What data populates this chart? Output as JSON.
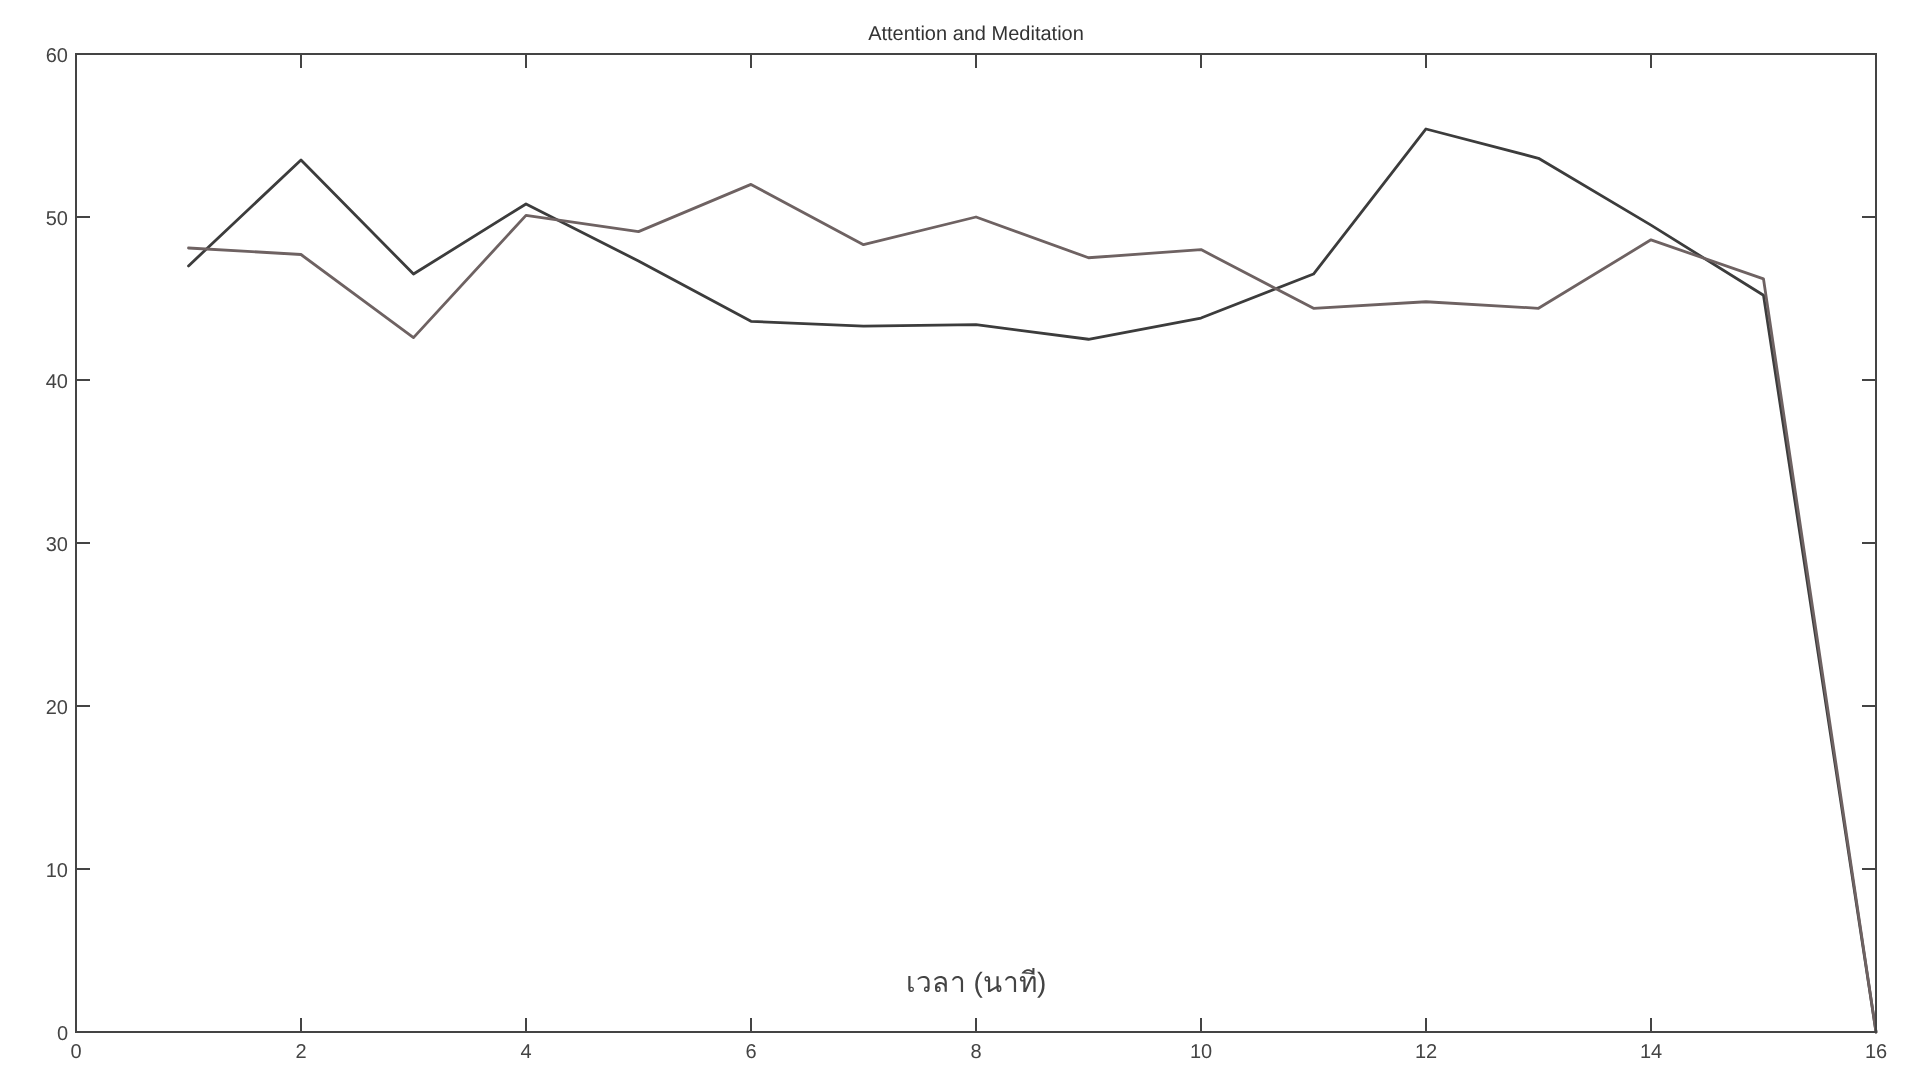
{
  "chart_data": {
    "type": "line",
    "title": "Attention and Meditation",
    "xlabel": "เวลา (นาที)",
    "x": [
      1,
      2,
      3,
      4,
      5,
      6,
      7,
      8,
      9,
      10,
      11,
      12,
      13,
      14,
      15,
      16
    ],
    "series": [
      {
        "color": "#3c3c3c",
        "values": [
          47,
          53.5,
          46.5,
          50.8,
          47.3,
          43.6,
          43.3,
          43.4,
          42.5,
          43.8,
          46.5,
          55.4,
          53.6,
          49.5,
          45.2,
          0
        ]
      },
      {
        "color": "#6e6262",
        "values": [
          48.1,
          47.7,
          42.6,
          50.1,
          49.1,
          52,
          48.3,
          50,
          47.5,
          48,
          44.4,
          44.8,
          44.4,
          48.6,
          46.2,
          0
        ]
      }
    ],
    "xlim": [
      0,
      16
    ],
    "ylim": [
      0,
      60
    ],
    "xticks": [
      0,
      2,
      4,
      6,
      8,
      10,
      12,
      14,
      16
    ],
    "yticks": [
      0,
      10,
      20,
      30,
      40,
      50,
      60
    ],
    "grid": false,
    "marker": "none",
    "line_style": "solid"
  }
}
